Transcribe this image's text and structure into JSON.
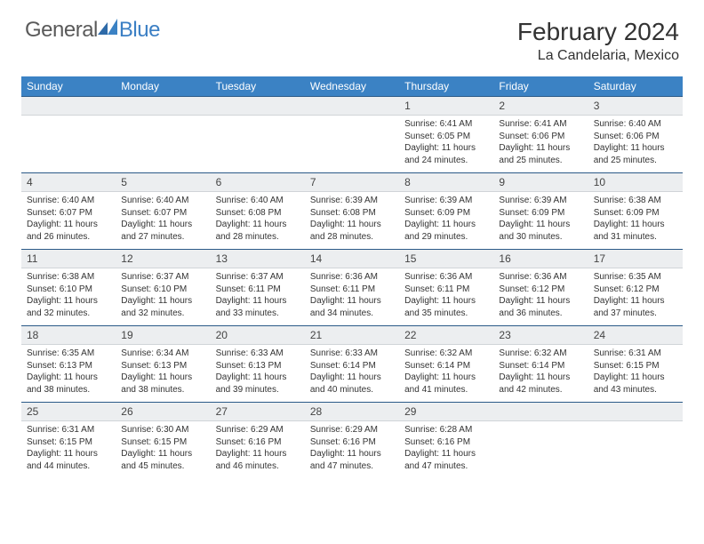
{
  "logo": {
    "general": "General",
    "blue": "Blue"
  },
  "title": "February 2024",
  "location": "La Candelaria, Mexico",
  "colors": {
    "header_bg": "#3b82c4",
    "header_text": "#ffffff",
    "daynum_bg": "#eceef0",
    "row_border": "#2b5a88",
    "text": "#333333",
    "logo_gray": "#5a5a5a",
    "logo_blue": "#3b7fc4"
  },
  "weekdays": [
    "Sunday",
    "Monday",
    "Tuesday",
    "Wednesday",
    "Thursday",
    "Friday",
    "Saturday"
  ],
  "weeks": [
    [
      {
        "blank": true
      },
      {
        "blank": true
      },
      {
        "blank": true
      },
      {
        "blank": true
      },
      {
        "n": "1",
        "sr": "6:41 AM",
        "ss": "6:05 PM",
        "dl": "11 hours and 24 minutes."
      },
      {
        "n": "2",
        "sr": "6:41 AM",
        "ss": "6:06 PM",
        "dl": "11 hours and 25 minutes."
      },
      {
        "n": "3",
        "sr": "6:40 AM",
        "ss": "6:06 PM",
        "dl": "11 hours and 25 minutes."
      }
    ],
    [
      {
        "n": "4",
        "sr": "6:40 AM",
        "ss": "6:07 PM",
        "dl": "11 hours and 26 minutes."
      },
      {
        "n": "5",
        "sr": "6:40 AM",
        "ss": "6:07 PM",
        "dl": "11 hours and 27 minutes."
      },
      {
        "n": "6",
        "sr": "6:40 AM",
        "ss": "6:08 PM",
        "dl": "11 hours and 28 minutes."
      },
      {
        "n": "7",
        "sr": "6:39 AM",
        "ss": "6:08 PM",
        "dl": "11 hours and 28 minutes."
      },
      {
        "n": "8",
        "sr": "6:39 AM",
        "ss": "6:09 PM",
        "dl": "11 hours and 29 minutes."
      },
      {
        "n": "9",
        "sr": "6:39 AM",
        "ss": "6:09 PM",
        "dl": "11 hours and 30 minutes."
      },
      {
        "n": "10",
        "sr": "6:38 AM",
        "ss": "6:09 PM",
        "dl": "11 hours and 31 minutes."
      }
    ],
    [
      {
        "n": "11",
        "sr": "6:38 AM",
        "ss": "6:10 PM",
        "dl": "11 hours and 32 minutes."
      },
      {
        "n": "12",
        "sr": "6:37 AM",
        "ss": "6:10 PM",
        "dl": "11 hours and 32 minutes."
      },
      {
        "n": "13",
        "sr": "6:37 AM",
        "ss": "6:11 PM",
        "dl": "11 hours and 33 minutes."
      },
      {
        "n": "14",
        "sr": "6:36 AM",
        "ss": "6:11 PM",
        "dl": "11 hours and 34 minutes."
      },
      {
        "n": "15",
        "sr": "6:36 AM",
        "ss": "6:11 PM",
        "dl": "11 hours and 35 minutes."
      },
      {
        "n": "16",
        "sr": "6:36 AM",
        "ss": "6:12 PM",
        "dl": "11 hours and 36 minutes."
      },
      {
        "n": "17",
        "sr": "6:35 AM",
        "ss": "6:12 PM",
        "dl": "11 hours and 37 minutes."
      }
    ],
    [
      {
        "n": "18",
        "sr": "6:35 AM",
        "ss": "6:13 PM",
        "dl": "11 hours and 38 minutes."
      },
      {
        "n": "19",
        "sr": "6:34 AM",
        "ss": "6:13 PM",
        "dl": "11 hours and 38 minutes."
      },
      {
        "n": "20",
        "sr": "6:33 AM",
        "ss": "6:13 PM",
        "dl": "11 hours and 39 minutes."
      },
      {
        "n": "21",
        "sr": "6:33 AM",
        "ss": "6:14 PM",
        "dl": "11 hours and 40 minutes."
      },
      {
        "n": "22",
        "sr": "6:32 AM",
        "ss": "6:14 PM",
        "dl": "11 hours and 41 minutes."
      },
      {
        "n": "23",
        "sr": "6:32 AM",
        "ss": "6:14 PM",
        "dl": "11 hours and 42 minutes."
      },
      {
        "n": "24",
        "sr": "6:31 AM",
        "ss": "6:15 PM",
        "dl": "11 hours and 43 minutes."
      }
    ],
    [
      {
        "n": "25",
        "sr": "6:31 AM",
        "ss": "6:15 PM",
        "dl": "11 hours and 44 minutes."
      },
      {
        "n": "26",
        "sr": "6:30 AM",
        "ss": "6:15 PM",
        "dl": "11 hours and 45 minutes."
      },
      {
        "n": "27",
        "sr": "6:29 AM",
        "ss": "6:16 PM",
        "dl": "11 hours and 46 minutes."
      },
      {
        "n": "28",
        "sr": "6:29 AM",
        "ss": "6:16 PM",
        "dl": "11 hours and 47 minutes."
      },
      {
        "n": "29",
        "sr": "6:28 AM",
        "ss": "6:16 PM",
        "dl": "11 hours and 47 minutes."
      },
      {
        "blank": true
      },
      {
        "blank": true
      }
    ]
  ],
  "labels": {
    "sunrise": "Sunrise:",
    "sunset": "Sunset:",
    "daylight": "Daylight:"
  }
}
